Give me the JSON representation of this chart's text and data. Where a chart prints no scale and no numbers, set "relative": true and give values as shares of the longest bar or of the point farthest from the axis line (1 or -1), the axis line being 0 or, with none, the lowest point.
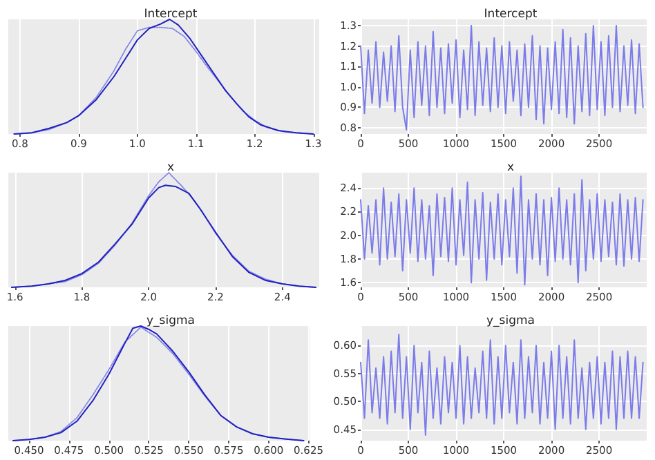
{
  "chart_data": [
    {
      "type": "line",
      "title": "Intercept",
      "relative": true,
      "marker": "none",
      "grid": "x",
      "xlim": [
        0.78,
        1.31
      ],
      "xticks": [
        0.8,
        0.9,
        {
          "value": 1.0,
          "label": "1.0"
        },
        1.1,
        1.2,
        1.3
      ],
      "series": [
        {
          "color": "#2020c0",
          "line_style": "solid",
          "x": [
            0.79,
            0.82,
            0.85,
            0.88,
            0.9,
            0.93,
            0.96,
            0.98,
            1.0,
            1.02,
            1.04,
            1.055,
            1.07,
            1.09,
            1.11,
            1.13,
            1.15,
            1.17,
            1.19,
            1.21,
            1.24,
            1.27,
            1.3
          ],
          "values": [
            0.0,
            0.01,
            0.05,
            0.1,
            0.16,
            0.3,
            0.5,
            0.66,
            0.82,
            0.92,
            0.96,
            1.0,
            0.95,
            0.83,
            0.68,
            0.53,
            0.38,
            0.26,
            0.15,
            0.08,
            0.03,
            0.01,
            0.0
          ]
        },
        {
          "color": "#8080e8",
          "line_style": "dotted",
          "x": [
            0.79,
            0.82,
            0.85,
            0.88,
            0.9,
            0.93,
            0.96,
            0.98,
            1.0,
            1.02,
            1.04,
            1.06,
            1.08,
            1.1,
            1.12,
            1.14,
            1.16,
            1.18,
            1.2,
            1.22,
            1.25,
            1.3
          ],
          "values": [
            0.0,
            0.01,
            0.04,
            0.1,
            0.16,
            0.32,
            0.55,
            0.74,
            0.9,
            0.93,
            0.93,
            0.92,
            0.85,
            0.72,
            0.58,
            0.45,
            0.32,
            0.2,
            0.12,
            0.06,
            0.02,
            0.0
          ]
        }
      ]
    },
    {
      "type": "line",
      "title": "Intercept",
      "marker": "none",
      "grid": true,
      "xlim": [
        0,
        2999
      ],
      "xticks": [
        0,
        500,
        1000,
        1500,
        2000,
        2500
      ],
      "ylim": [
        0.77,
        1.33
      ],
      "yticks": [
        0.8,
        0.9,
        {
          "value": 1.0,
          "label": "1.0"
        },
        1.1,
        1.2,
        1.3
      ],
      "x": [
        0,
        40,
        80,
        120,
        160,
        200,
        240,
        280,
        320,
        360,
        400,
        440,
        480,
        520,
        560,
        600,
        640,
        680,
        720,
        760,
        800,
        840,
        880,
        920,
        960,
        1000,
        1040,
        1080,
        1120,
        1160,
        1200,
        1240,
        1280,
        1320,
        1360,
        1400,
        1440,
        1480,
        1520,
        1560,
        1600,
        1640,
        1680,
        1720,
        1760,
        1800,
        1840,
        1880,
        1920,
        1960,
        2000,
        2040,
        2080,
        2120,
        2160,
        2200,
        2240,
        2280,
        2320,
        2360,
        2400,
        2440,
        2480,
        2520,
        2560,
        2600,
        2640,
        2680,
        2720,
        2760,
        2800,
        2840,
        2880,
        2920,
        2960
      ],
      "series": [
        {
          "color": "#7b7bea",
          "values": [
            1.2,
            0.87,
            1.18,
            0.92,
            1.22,
            0.9,
            1.17,
            0.93,
            1.2,
            0.88,
            1.25,
            0.9,
            0.79,
            1.18,
            0.85,
            1.22,
            0.91,
            1.2,
            0.86,
            1.27,
            0.9,
            1.19,
            0.87,
            1.21,
            0.92,
            1.23,
            0.85,
            1.18,
            0.89,
            1.3,
            0.86,
            1.22,
            0.91,
            1.19,
            0.88,
            1.24,
            0.9,
            1.2,
            0.87,
            1.22,
            0.93,
            1.18,
            0.86,
            1.21,
            0.9,
            1.25,
            0.84,
            1.2,
            0.82,
            1.19,
            0.89,
            1.22,
            0.87,
            1.28,
            0.85,
            1.24,
            0.82,
            1.2,
            0.88,
            1.26,
            0.86,
            1.3,
            0.89,
            1.22,
            0.86,
            1.25,
            0.9,
            1.3,
            0.88,
            1.2,
            0.91,
            1.23,
            0.87,
            1.21,
            0.9
          ]
        }
      ]
    },
    {
      "type": "line",
      "title": "x",
      "relative": true,
      "marker": "none",
      "grid": "x",
      "xlim": [
        1.58,
        2.51
      ],
      "xticks": [
        1.6,
        1.8,
        {
          "value": 2.0,
          "label": "2.0"
        },
        2.2,
        2.4
      ],
      "series": [
        {
          "color": "#2020c0",
          "line_style": "solid",
          "x": [
            1.59,
            1.65,
            1.7,
            1.75,
            1.8,
            1.85,
            1.9,
            1.95,
            2.0,
            2.03,
            2.05,
            2.08,
            2.12,
            2.15,
            2.2,
            2.25,
            2.3,
            2.35,
            2.4,
            2.45,
            2.5
          ],
          "values": [
            0.0,
            0.01,
            0.03,
            0.06,
            0.12,
            0.22,
            0.38,
            0.55,
            0.78,
            0.87,
            0.89,
            0.88,
            0.82,
            0.7,
            0.48,
            0.27,
            0.13,
            0.06,
            0.03,
            0.01,
            0.0
          ]
        },
        {
          "color": "#8080e8",
          "line_style": "dotted",
          "x": [
            1.59,
            1.65,
            1.7,
            1.75,
            1.8,
            1.85,
            1.9,
            1.95,
            2.0,
            2.03,
            2.06,
            2.1,
            2.13,
            2.16,
            2.2,
            2.25,
            2.3,
            2.35,
            2.4,
            2.45,
            2.5
          ],
          "values": [
            0.0,
            0.01,
            0.03,
            0.05,
            0.11,
            0.21,
            0.37,
            0.56,
            0.8,
            0.92,
            1.0,
            0.88,
            0.78,
            0.66,
            0.47,
            0.28,
            0.14,
            0.07,
            0.03,
            0.01,
            0.0
          ]
        }
      ]
    },
    {
      "type": "line",
      "title": "x",
      "marker": "none",
      "grid": true,
      "xlim": [
        0,
        2999
      ],
      "xticks": [
        0,
        500,
        1000,
        1500,
        2000,
        2500
      ],
      "ylim": [
        1.56,
        2.53
      ],
      "yticks": [
        1.6,
        1.8,
        {
          "value": 2.0,
          "label": "2.0"
        },
        2.2,
        2.4
      ],
      "x": [
        0,
        40,
        80,
        120,
        160,
        200,
        240,
        280,
        320,
        360,
        400,
        440,
        480,
        520,
        560,
        600,
        640,
        680,
        720,
        760,
        800,
        840,
        880,
        920,
        960,
        1000,
        1040,
        1080,
        1120,
        1160,
        1200,
        1240,
        1280,
        1320,
        1360,
        1400,
        1440,
        1480,
        1520,
        1560,
        1600,
        1640,
        1680,
        1720,
        1760,
        1800,
        1840,
        1880,
        1920,
        1960,
        2000,
        2040,
        2080,
        2120,
        2160,
        2200,
        2240,
        2280,
        2320,
        2360,
        2400,
        2440,
        2480,
        2520,
        2560,
        2600,
        2640,
        2680,
        2720,
        2760,
        2800,
        2840,
        2880,
        2920,
        2960
      ],
      "series": [
        {
          "color": "#7b7bea",
          "values": [
            2.3,
            1.8,
            2.25,
            1.85,
            2.3,
            1.75,
            2.4,
            1.8,
            2.28,
            1.82,
            2.35,
            1.7,
            2.3,
            1.85,
            2.4,
            1.78,
            2.3,
            1.8,
            2.25,
            1.66,
            2.35,
            1.82,
            2.32,
            1.78,
            2.4,
            1.75,
            2.3,
            1.83,
            2.45,
            1.6,
            2.3,
            1.8,
            2.36,
            1.62,
            2.28,
            1.8,
            2.35,
            1.75,
            2.3,
            1.82,
            2.4,
            1.68,
            2.5,
            1.58,
            2.3,
            1.8,
            2.35,
            1.75,
            2.3,
            1.66,
            2.32,
            1.78,
            2.4,
            1.8,
            2.3,
            1.75,
            2.35,
            1.6,
            2.47,
            1.7,
            2.3,
            1.8,
            2.35,
            1.78,
            2.3,
            1.82,
            2.28,
            1.75,
            2.35,
            1.74,
            2.3,
            1.8,
            2.32,
            1.78,
            2.3
          ]
        }
      ]
    },
    {
      "type": "line",
      "title": "y_sigma",
      "relative": true,
      "marker": "none",
      "grid": "x",
      "xlim": [
        0.437,
        0.626
      ],
      "xticks": [
        {
          "value": 0.45,
          "label": "0.450"
        },
        0.475,
        {
          "value": 0.5,
          "label": "0.500"
        },
        0.525,
        {
          "value": 0.55,
          "label": "0.550"
        },
        0.575,
        {
          "value": 0.6,
          "label": "0.600"
        },
        0.625
      ],
      "series": [
        {
          "color": "#2020c0",
          "line_style": "solid",
          "x": [
            0.44,
            0.45,
            0.46,
            0.47,
            0.48,
            0.49,
            0.5,
            0.51,
            0.515,
            0.52,
            0.525,
            0.53,
            0.54,
            0.55,
            0.56,
            0.57,
            0.58,
            0.59,
            0.6,
            0.61,
            0.622
          ],
          "values": [
            0.0,
            0.01,
            0.03,
            0.07,
            0.17,
            0.35,
            0.58,
            0.85,
            0.98,
            1.0,
            0.97,
            0.93,
            0.78,
            0.6,
            0.4,
            0.22,
            0.12,
            0.06,
            0.03,
            0.015,
            0.0
          ]
        },
        {
          "color": "#8080e8",
          "line_style": "dotted",
          "x": [
            0.44,
            0.45,
            0.46,
            0.47,
            0.48,
            0.49,
            0.5,
            0.51,
            0.52,
            0.53,
            0.54,
            0.55,
            0.56,
            0.57,
            0.58,
            0.59,
            0.6,
            0.61,
            0.622
          ],
          "values": [
            0.0,
            0.01,
            0.03,
            0.08,
            0.2,
            0.4,
            0.62,
            0.86,
            0.99,
            0.9,
            0.76,
            0.58,
            0.39,
            0.22,
            0.12,
            0.06,
            0.03,
            0.015,
            0.0
          ]
        }
      ]
    },
    {
      "type": "line",
      "title": "y_sigma",
      "marker": "none",
      "grid": true,
      "xlim": [
        0,
        2999
      ],
      "xticks": [
        0,
        500,
        1000,
        1500,
        2000,
        2500
      ],
      "ylim": [
        0.43,
        0.635
      ],
      "yticks": [
        0.45,
        {
          "value": 0.5,
          "label": "0.50"
        },
        0.55,
        {
          "value": 0.6,
          "label": "0.60"
        }
      ],
      "x": [
        0,
        40,
        80,
        120,
        160,
        200,
        240,
        280,
        320,
        360,
        400,
        440,
        480,
        520,
        560,
        600,
        640,
        680,
        720,
        760,
        800,
        840,
        880,
        920,
        960,
        1000,
        1040,
        1080,
        1120,
        1160,
        1200,
        1240,
        1280,
        1320,
        1360,
        1400,
        1440,
        1480,
        1520,
        1560,
        1600,
        1640,
        1680,
        1720,
        1760,
        1800,
        1840,
        1880,
        1920,
        1960,
        2000,
        2040,
        2080,
        2120,
        2160,
        2200,
        2240,
        2280,
        2320,
        2360,
        2400,
        2440,
        2480,
        2520,
        2560,
        2600,
        2640,
        2680,
        2720,
        2760,
        2800,
        2840,
        2880,
        2920,
        2960
      ],
      "series": [
        {
          "color": "#7b7bea",
          "values": [
            0.57,
            0.47,
            0.61,
            0.48,
            0.56,
            0.47,
            0.58,
            0.46,
            0.59,
            0.48,
            0.62,
            0.47,
            0.58,
            0.45,
            0.6,
            0.48,
            0.57,
            0.44,
            0.59,
            0.47,
            0.56,
            0.46,
            0.58,
            0.48,
            0.57,
            0.47,
            0.6,
            0.46,
            0.58,
            0.47,
            0.56,
            0.48,
            0.59,
            0.47,
            0.61,
            0.46,
            0.58,
            0.47,
            0.6,
            0.48,
            0.57,
            0.46,
            0.61,
            0.47,
            0.58,
            0.48,
            0.6,
            0.46,
            0.57,
            0.47,
            0.59,
            0.45,
            0.6,
            0.47,
            0.58,
            0.46,
            0.61,
            0.47,
            0.56,
            0.45,
            0.57,
            0.47,
            0.58,
            0.46,
            0.57,
            0.47,
            0.59,
            0.45,
            0.58,
            0.47,
            0.59,
            0.47,
            0.58,
            0.47,
            0.57
          ]
        }
      ]
    }
  ]
}
